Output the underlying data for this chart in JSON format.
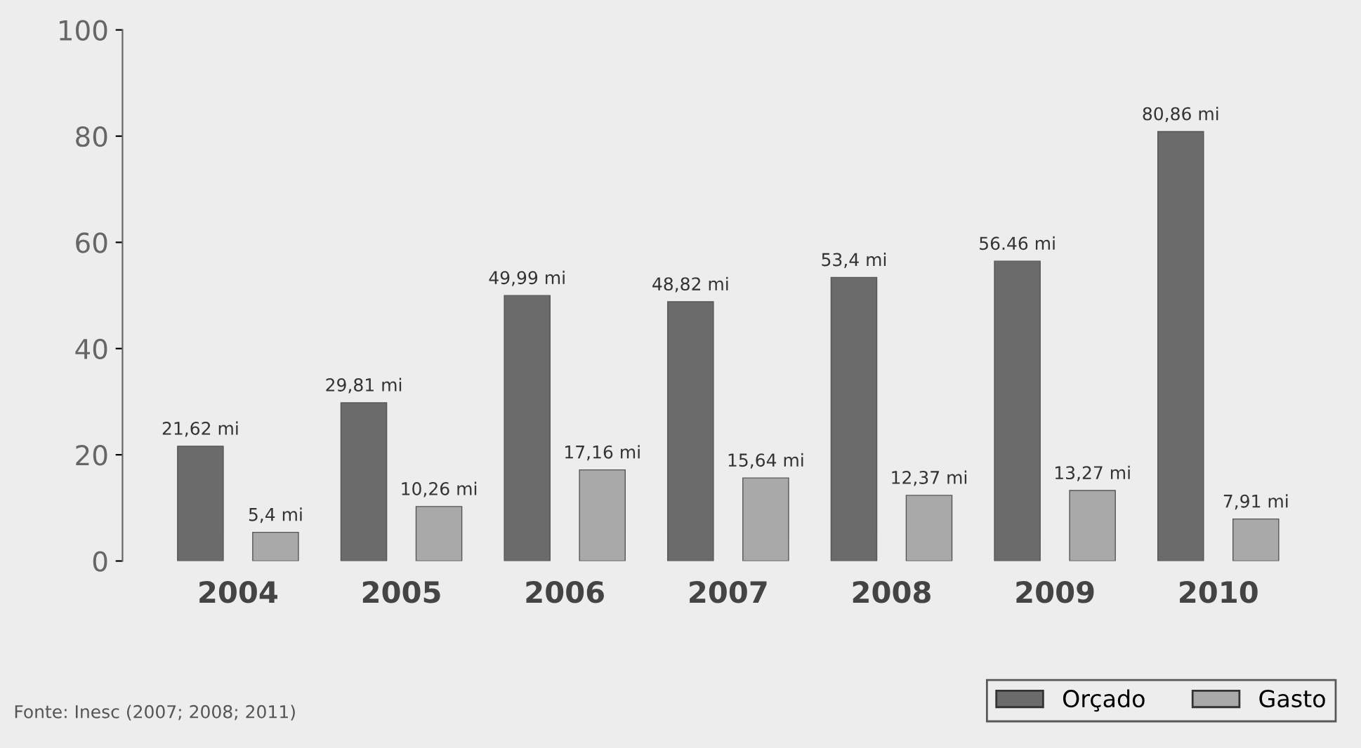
{
  "chart_data": {
    "type": "bar",
    "categories": [
      "2004",
      "2005",
      "2006",
      "2007",
      "2008",
      "2009",
      "2010"
    ],
    "series": [
      {
        "name": "Orçado",
        "color": "#6b6b6b",
        "values": [
          21.62,
          29.81,
          49.99,
          48.82,
          53.4,
          56.46,
          80.86
        ],
        "value_labels": [
          "21,62 mi",
          "29,81 mi",
          "49,99 mi",
          "48,82 mi",
          "53,4 mi",
          "56.46 mi",
          "80,86 mi"
        ]
      },
      {
        "name": "Gasto",
        "color": "#a9a9a9",
        "values": [
          5.4,
          10.26,
          17.16,
          15.64,
          12.37,
          13.27,
          7.91
        ],
        "value_labels": [
          "5,4 mi",
          "10,26 mi",
          "17,16 mi",
          "15,64 mi",
          "12,37 mi",
          "13,27 mi",
          "7,91 mi"
        ]
      }
    ],
    "ylim": [
      0,
      100
    ],
    "yticks": [
      0,
      20,
      40,
      60,
      80,
      100
    ],
    "grid": false,
    "legend": "bottom right",
    "annotations": [
      "Fonte: Inesc (2007; 2008; 2011)"
    ]
  }
}
